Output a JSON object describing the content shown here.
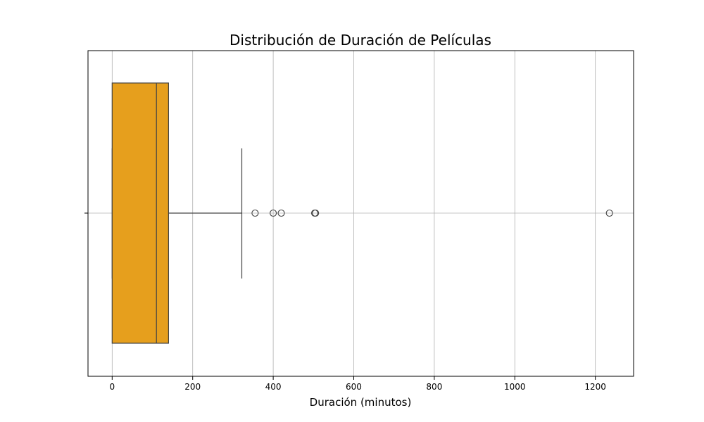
{
  "chart_data": {
    "type": "box",
    "title": "Distribución de Duración de Películas",
    "xlabel": "Duración (minutos)",
    "ylabel": "",
    "orientation": "horizontal",
    "xlim": [
      -60,
      1295
    ],
    "xticks": [
      0,
      200,
      400,
      600,
      800,
      1000,
      1200
    ],
    "grid": true,
    "box_color": "#E69F1D",
    "edge_color": "#444444",
    "box": {
      "whisker_low": 0,
      "q1": 0,
      "median": 110,
      "q3": 140,
      "whisker_high": 322
    },
    "outliers": [
      355,
      400,
      420,
      503,
      505,
      1235
    ]
  }
}
